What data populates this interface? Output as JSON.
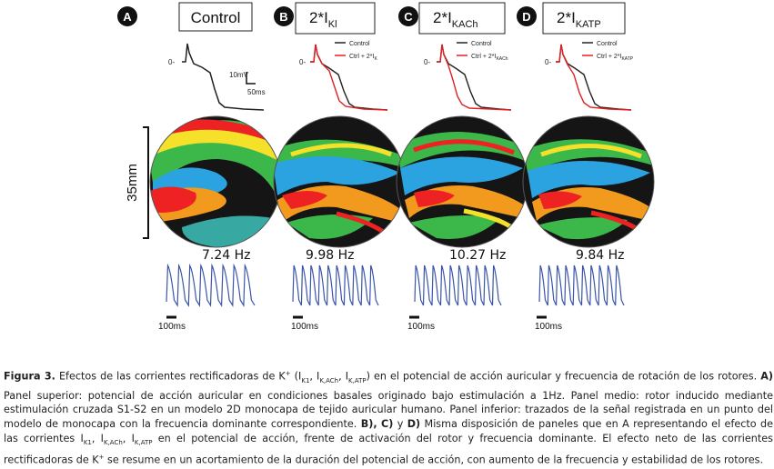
{
  "panels": [
    {
      "letter": "A",
      "label": "Control",
      "label_sub": "",
      "frequency": "7.24 Hz",
      "time_scale": "100ms",
      "legend": null
    },
    {
      "letter": "B",
      "label": "2*I",
      "label_sub": "Kl",
      "frequency": "9.98 Hz",
      "time_scale": "100ms",
      "legend": {
        "line1": "Control",
        "line2": "Ctrl + 2*I",
        "line2_sub": "K"
      }
    },
    {
      "letter": "C",
      "label": "2*I",
      "label_sub": "KACh",
      "frequency": "10.27 Hz",
      "time_scale": "100ms",
      "legend": {
        "line1": "Control",
        "line2": "Ctrl + 2*I",
        "line2_sub": "KACh"
      }
    },
    {
      "letter": "D",
      "label": "2*I",
      "label_sub": "KATP",
      "frequency": "9.84 Hz",
      "time_scale": "100ms",
      "legend": {
        "line1": "Control",
        "line2": "Ctrl + 2*I",
        "line2_sub": "KATP"
      }
    }
  ],
  "ap_scale": {
    "voltage": "10mV",
    "time": "50ms"
  },
  "zero_mark": "0-",
  "rotor_size": "35mm",
  "colors": {
    "control": "#222222",
    "modified": "#e02020",
    "trace": "#3a55a8"
  },
  "caption": {
    "fig_label": "Figura 3.",
    "title_a": " Efectos de las corrientes rectificadoras de K",
    "title_b": " (I",
    "sub_k1": "K1",
    "sub_kach": "K,ACh",
    "sub_katp": "K,ATP",
    "sep": ", I",
    "title_c": ") en el potencial de acción auricular y frecuencia de rotación de los rotores. ",
    "a_label": "A)",
    "a_text": " Panel superior: potencial de acción auricular en condiciones basales originado bajo estimulación a 1Hz. Panel medio: rotor inducido mediante estimulación cruzada S1-S2 en un modelo 2D monocapa de tejido auricular humano. Panel inferior: trazados de la señal registrada en un punto del modelo de monocapa con la frecuencia dominante correspondiente. ",
    "b_label": "B),",
    "c_label": "C)",
    "y_text": " y ",
    "d_label": "D)",
    "d_text": " Misma disposición de paneles que en A representando el efecto de las corrientes I",
    "d_text2": " en el potencial de acción, frente de activación del rotor y frecuencia dominante. El efecto neto de las corrientes rectificadoras de K",
    "end_text": " se resume en un acortamiento de la duración del potencial de acción, con aumento de la frecuencia y estabilidad de los rotores.",
    "plus": "+"
  }
}
